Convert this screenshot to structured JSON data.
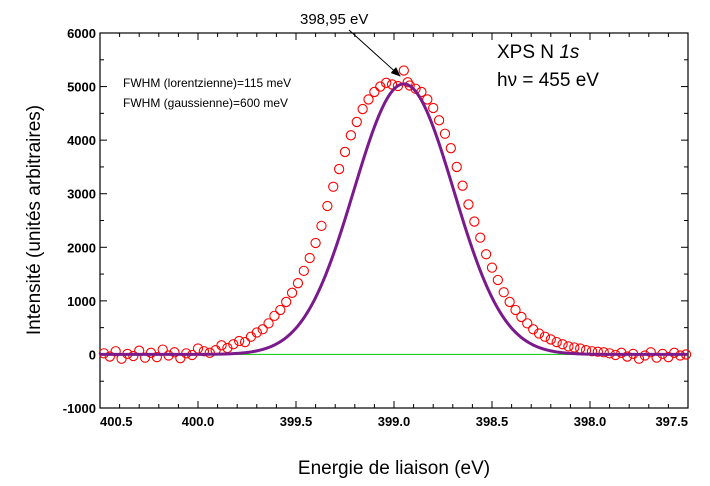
{
  "chart_data": {
    "type": "scatter",
    "xlabel": "Energie de liaison (eV)",
    "ylabel": "Intensité (unités arbitraires)",
    "x_reversed": true,
    "xlim": [
      400.5,
      397.5
    ],
    "ylim": [
      -1000,
      6000
    ],
    "x_ticks": [
      "400.5",
      "400.0",
      "399.5",
      "399.0",
      "398.5",
      "398.0",
      "397.5"
    ],
    "y_ticks": [
      "-1000",
      "0",
      "1000",
      "2000",
      "3000",
      "4000",
      "5000",
      "6000"
    ],
    "annotations": {
      "peak_label": "398,95 eV",
      "fwhm_lorentz": "FWHM (lorentzienne)=115 meV",
      "fwhm_gauss": "FWHM (gaussienne)=600 meV",
      "spectrum_label_prefix": "XPS N ",
      "spectrum_label_italic": "1s",
      "photon_energy": "hν = 455 eV"
    },
    "fit": {
      "center": 398.95,
      "amplitude": 5050,
      "fwhm_gauss": 0.6,
      "baseline": 0
    },
    "colors": {
      "data_points": "#ff0000",
      "fit_curve": "#7a1a8c",
      "baseline": "#22cc22"
    },
    "series": [
      {
        "type": "scatter",
        "marker": "open-circle",
        "x": [
          400.48,
          400.45,
          400.42,
          400.39,
          400.36,
          400.33,
          400.3,
          400.27,
          400.24,
          400.21,
          400.18,
          400.15,
          400.12,
          400.09,
          400.06,
          400.03,
          400.0,
          399.97,
          399.94,
          399.91,
          399.88,
          399.85,
          399.82,
          399.79,
          399.76,
          399.73,
          399.7,
          399.67,
          399.64,
          399.61,
          399.58,
          399.55,
          399.52,
          399.49,
          399.46,
          399.43,
          399.4,
          399.37,
          399.34,
          399.31,
          399.28,
          399.25,
          399.22,
          399.19,
          399.16,
          399.13,
          399.1,
          399.07,
          399.04,
          399.01,
          398.98,
          398.95,
          398.93,
          398.92,
          398.89,
          398.86,
          398.83,
          398.8,
          398.77,
          398.74,
          398.71,
          398.68,
          398.65,
          398.62,
          398.59,
          398.56,
          398.53,
          398.5,
          398.47,
          398.44,
          398.41,
          398.38,
          398.35,
          398.32,
          398.29,
          398.26,
          398.23,
          398.2,
          398.17,
          398.14,
          398.11,
          398.08,
          398.05,
          398.02,
          397.99,
          397.96,
          397.93,
          397.9,
          397.87,
          397.84,
          397.81,
          397.78,
          397.75,
          397.72,
          397.69,
          397.66,
          397.63,
          397.6,
          397.57,
          397.54,
          397.51
        ],
        "y": [
          20,
          -40,
          60,
          -80,
          10,
          -30,
          70,
          -60,
          30,
          -50,
          90,
          -20,
          40,
          -70,
          20,
          -10,
          110,
          60,
          30,
          80,
          170,
          120,
          190,
          250,
          230,
          330,
          410,
          470,
          580,
          720,
          830,
          980,
          1150,
          1330,
          1560,
          1800,
          2080,
          2400,
          2770,
          3130,
          3460,
          3780,
          4090,
          4340,
          4580,
          4760,
          4900,
          5000,
          5070,
          5040,
          5010,
          5300,
          5080,
          5020,
          4960,
          4900,
          4760,
          4600,
          4370,
          4120,
          3850,
          3500,
          3150,
          2800,
          2480,
          2180,
          1870,
          1620,
          1390,
          1160,
          980,
          830,
          700,
          580,
          470,
          390,
          330,
          280,
          230,
          190,
          150,
          130,
          110,
          80,
          60,
          50,
          40,
          20,
          -10,
          30,
          -40,
          10,
          -80,
          -20,
          40,
          -60,
          10,
          -50,
          30,
          -20,
          0
        ]
      }
    ]
  }
}
